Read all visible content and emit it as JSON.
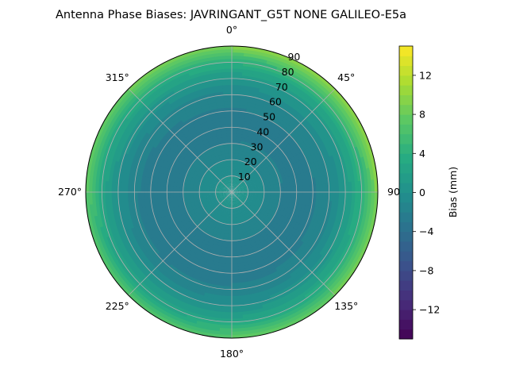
{
  "chart_data": {
    "type": "polar-heatmap",
    "title": "Antenna Phase Biases: JAVRINGANT_G5T  NONE GALILEO-E5a",
    "radial_axis": {
      "label": "",
      "range": [
        0,
        90
      ],
      "ticks": [
        10,
        20,
        30,
        40,
        50,
        60,
        70,
        80,
        90
      ]
    },
    "angular_axis": {
      "zero_location": "N",
      "direction": "clockwise",
      "ticks": [
        0,
        45,
        90,
        135,
        180,
        225,
        270,
        315
      ],
      "tick_labels": [
        "0°",
        "45°",
        "90",
        "135°",
        "180°",
        "225°",
        "270°",
        "315°"
      ]
    },
    "colorbar": {
      "label": "Bias (mm)",
      "colormap": "viridis",
      "range": [
        -15,
        15
      ],
      "ticks": [
        -12,
        -8,
        -4,
        0,
        4,
        8,
        12
      ],
      "tick_labels": [
        "−12",
        "−8",
        "−4",
        "0",
        "4",
        "8",
        "12"
      ]
    },
    "bias_profile": {
      "zenith_angle": [
        0,
        10,
        20,
        30,
        40,
        50,
        60,
        70,
        80,
        90
      ],
      "bias_mm": [
        0.5,
        0.0,
        -1.0,
        -2.0,
        -2.5,
        -2.3,
        -1.5,
        0.5,
        3.5,
        8.5
      ],
      "azimuthal_variation": "upper-right quadrant slightly higher near edge"
    },
    "grid": true
  }
}
